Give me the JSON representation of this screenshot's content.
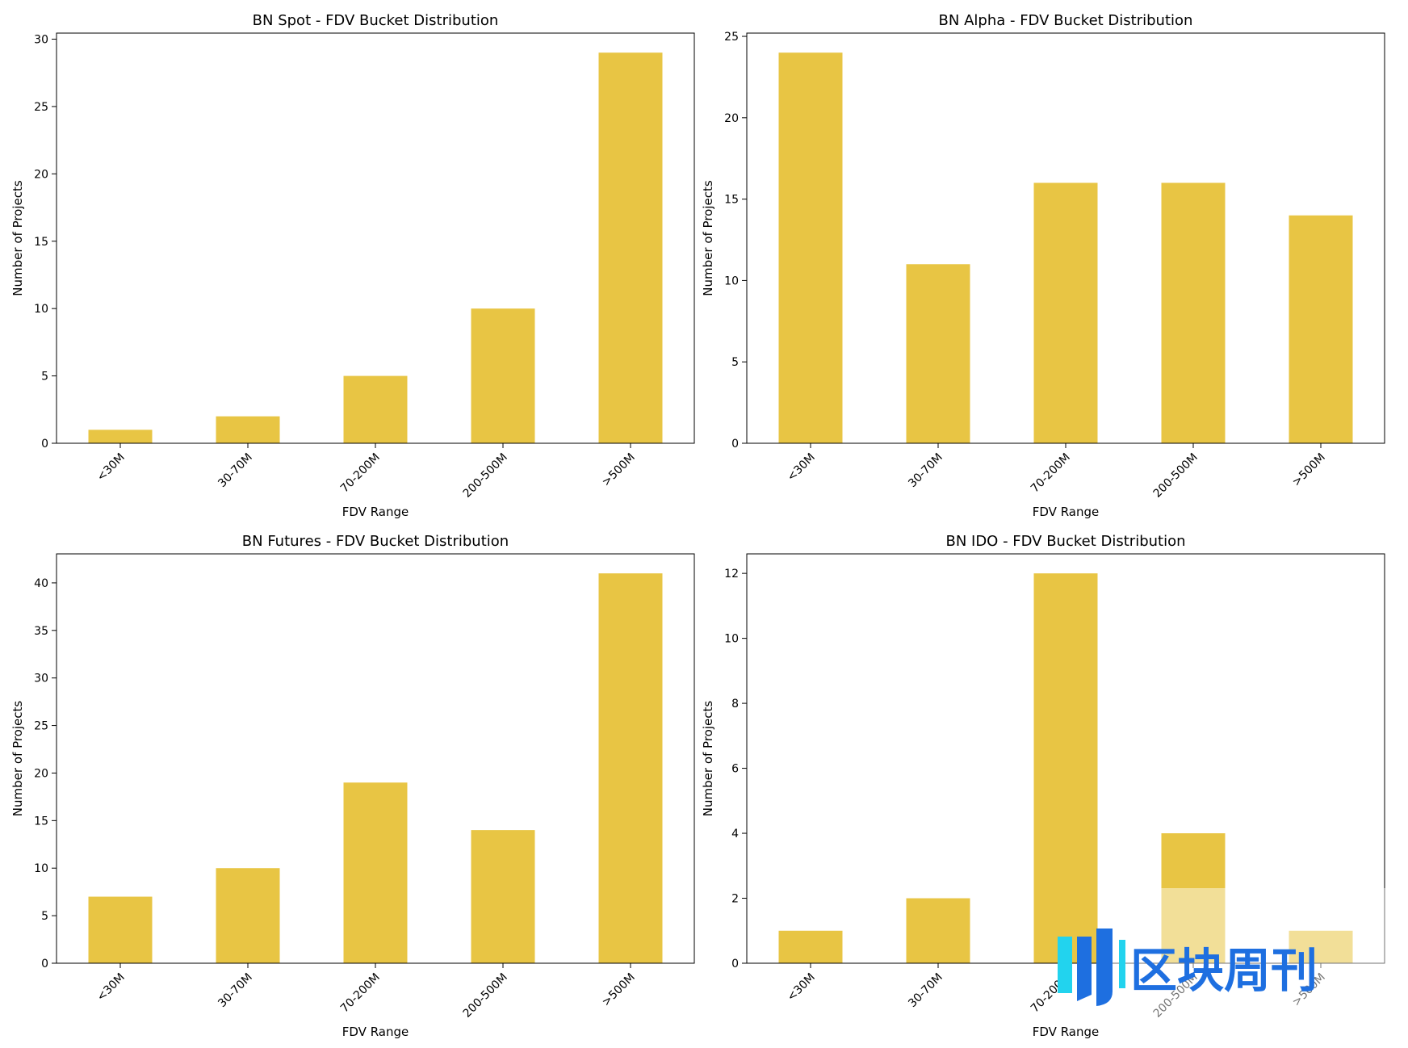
{
  "chart_data": [
    {
      "type": "bar",
      "title": "BN Spot - FDV Bucket Distribution",
      "xlabel": "FDV Range",
      "ylabel": "Number of Projects",
      "categories": [
        "<30M",
        "30-70M",
        "70-200M",
        "200-500M",
        ">500M"
      ],
      "values": [
        1,
        2,
        5,
        10,
        29
      ],
      "ylim": [
        0,
        30.45
      ],
      "yticks": [
        0,
        5,
        10,
        15,
        20,
        25,
        30
      ],
      "grid": false,
      "bar_color": "#E8C544"
    },
    {
      "type": "bar",
      "title": "BN Alpha - FDV Bucket Distribution",
      "xlabel": "FDV Range",
      "ylabel": "Number of Projects",
      "categories": [
        "<30M",
        "30-70M",
        "70-200M",
        "200-500M",
        ">500M"
      ],
      "values": [
        24,
        11,
        16,
        16,
        14
      ],
      "ylim": [
        0,
        25.2
      ],
      "yticks": [
        0,
        5,
        10,
        15,
        20,
        25
      ],
      "grid": false,
      "bar_color": "#E8C544"
    },
    {
      "type": "bar",
      "title": "BN Futures - FDV Bucket Distribution",
      "xlabel": "FDV Range",
      "ylabel": "Number of Projects",
      "categories": [
        "<30M",
        "30-70M",
        "70-200M",
        "200-500M",
        ">500M"
      ],
      "values": [
        7,
        10,
        19,
        14,
        41
      ],
      "ylim": [
        0,
        43.05
      ],
      "yticks": [
        0,
        5,
        10,
        15,
        20,
        25,
        30,
        35,
        40
      ],
      "grid": false,
      "bar_color": "#E8C544"
    },
    {
      "type": "bar",
      "title": "BN IDO - FDV Bucket Distribution",
      "xlabel": "FDV Range",
      "ylabel": "Number of Projects",
      "categories": [
        "<30M",
        "30-70M",
        "70-200M",
        "200-500M",
        ">500M"
      ],
      "values": [
        1,
        2,
        12,
        4,
        1
      ],
      "ylim": [
        0,
        12.6
      ],
      "yticks": [
        0,
        2,
        4,
        6,
        8,
        10,
        12
      ],
      "grid": false,
      "bar_color": "#E8C544"
    }
  ],
  "watermark": {
    "text": "区块周刊",
    "colors": [
      "#1E6FE0",
      "#22D3EE"
    ]
  }
}
